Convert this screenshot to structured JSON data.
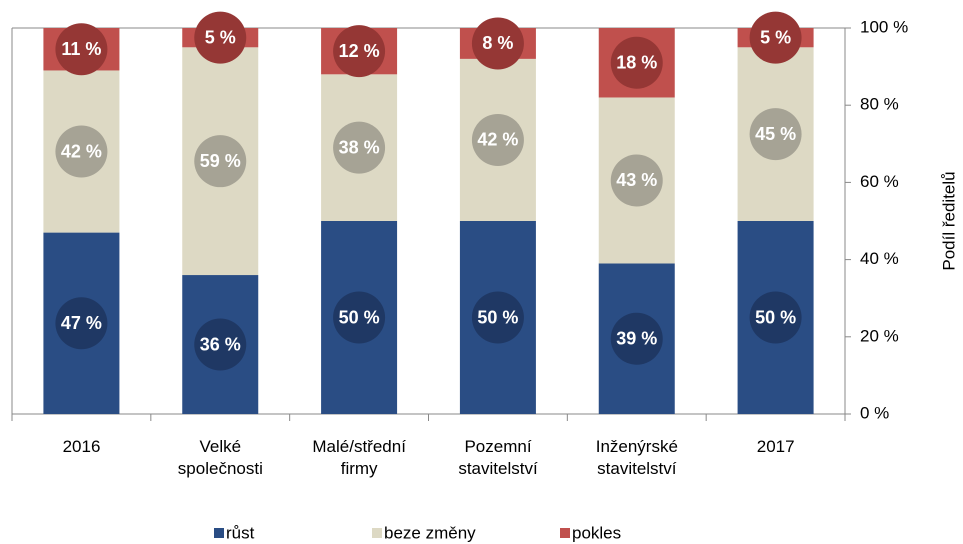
{
  "chart_data": {
    "type": "stacked_bar",
    "categories": [
      "2016",
      "Velké\nspolečnosti",
      "Malé/střední\nfirmy",
      "Pozemní\nstavitelství",
      "Inženýrské\nstavitelství",
      "2017"
    ],
    "series": [
      {
        "name": "růst",
        "color": "#2a4d84",
        "values": [
          47,
          36,
          50,
          50,
          39,
          50
        ],
        "value_labels": [
          "47 %",
          "36 %",
          "50 %",
          "50 %",
          "39 %",
          "50 %"
        ]
      },
      {
        "name": "beze změny",
        "color": "#ddd9c4",
        "values": [
          42,
          59,
          38,
          42,
          43,
          45
        ],
        "value_labels": [
          "42 %",
          "59 %",
          "38 %",
          "42 %",
          "43 %",
          "45 %"
        ]
      },
      {
        "name": "pokles",
        "color": "#c0504d",
        "values": [
          11,
          5,
          12,
          8,
          18,
          5
        ],
        "value_labels": [
          "11 %",
          "5 %",
          "12 %",
          "8 %",
          "18 %",
          "5 %"
        ]
      }
    ],
    "y_axis_label": "Podíl ředitelů",
    "ylim": [
      0,
      100
    ],
    "yticks": [
      {
        "value": 0,
        "label": "0 %"
      },
      {
        "value": 20,
        "label": "20 %"
      },
      {
        "value": 40,
        "label": "40 %"
      },
      {
        "value": 60,
        "label": "60 %"
      },
      {
        "value": 80,
        "label": "80 %"
      },
      {
        "value": 100,
        "label": "100 %"
      }
    ],
    "legend": "bottom"
  }
}
